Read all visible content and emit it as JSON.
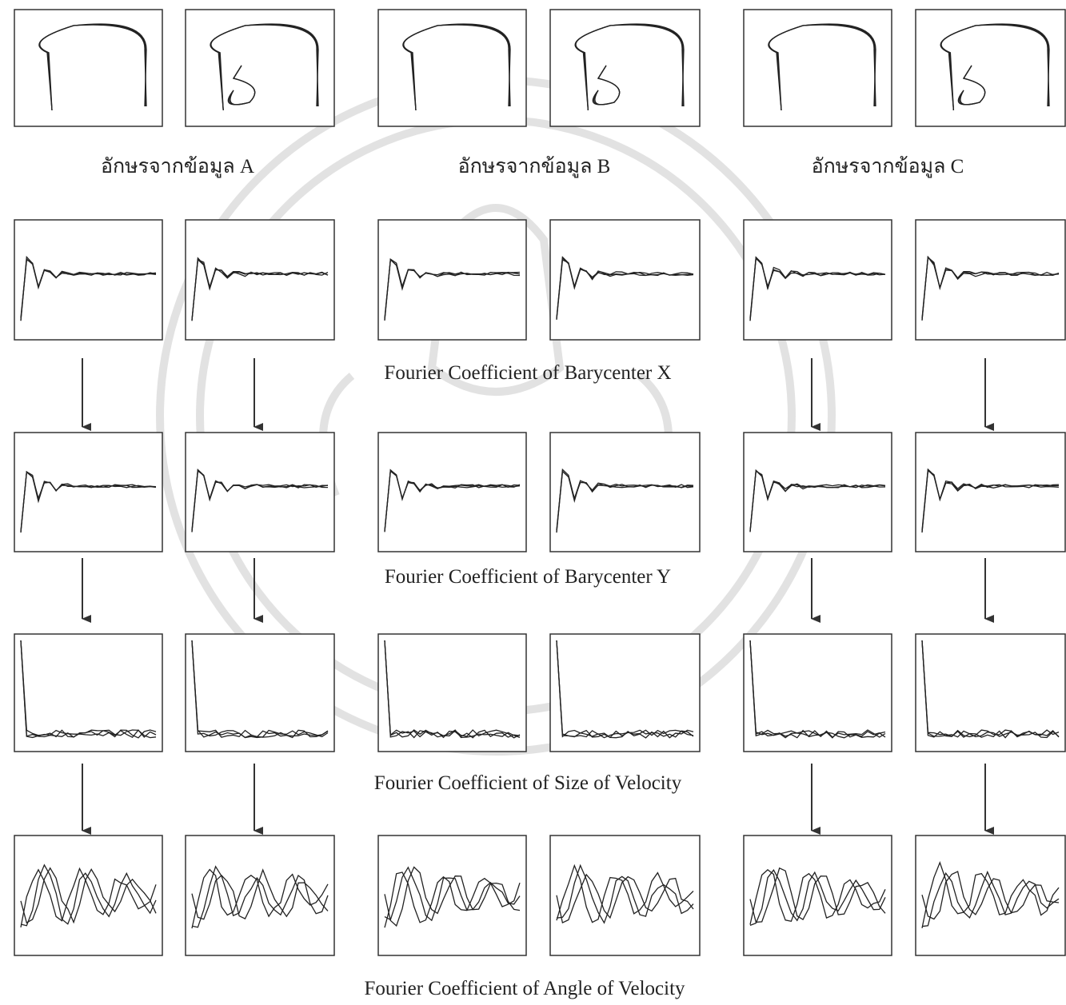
{
  "characters": [
    {
      "label": "อักษรจากข้อมูล A"
    },
    {
      "label": "อักษรจากข้อมูล B"
    },
    {
      "label": "อักษรจากข้อมูล C"
    }
  ],
  "feature_rows": [
    {
      "caption": "Fourier Coefficient of Barycenter X"
    },
    {
      "caption": "Fourier Coefficient of Barycenter Y"
    },
    {
      "caption": "Fourier Coefficient of Size of Velocity"
    },
    {
      "caption": "Fourier Coefficient of Angle of Velocity"
    }
  ]
}
